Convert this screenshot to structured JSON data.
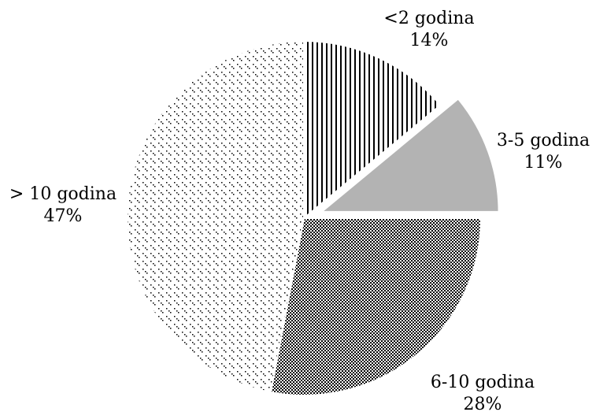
{
  "chart_data": {
    "type": "pie",
    "title": "",
    "slices": [
      {
        "label": "<2 godina",
        "value": 14,
        "value_label": "14%",
        "pattern": "vertical-stripes",
        "exploded": false
      },
      {
        "label": "3-5 godina",
        "value": 11,
        "value_label": "11%",
        "pattern": "solid-gray",
        "exploded": true
      },
      {
        "label": "6-10 godina",
        "value": 28,
        "value_label": "28%",
        "pattern": "dense-dots",
        "exploded": false
      },
      {
        "label": "> 10 godina",
        "value": 47,
        "value_label": "47%",
        "pattern": "sparse-dots",
        "exploded": false
      }
    ],
    "start_angle": "12 o'clock",
    "direction": "clockwise",
    "legend": "none"
  },
  "colors": {
    "background": "#ffffff",
    "outline": "#000000",
    "solid_gray": "#b3b3b3"
  }
}
